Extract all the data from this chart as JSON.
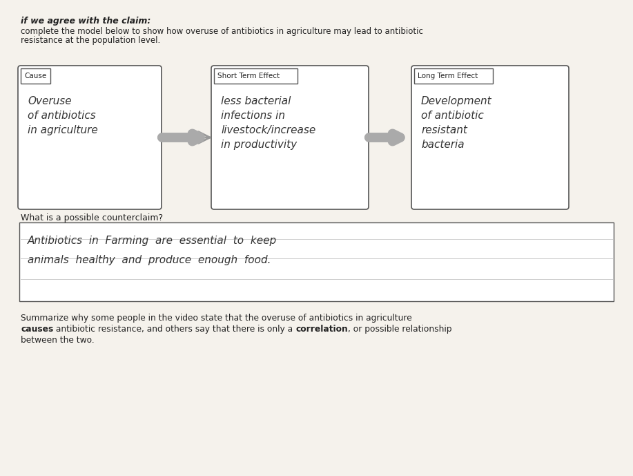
{
  "bg_color": "#d4c9b0",
  "paper_color": "#f5f2ec",
  "title_line1": "if we agree with the claim:",
  "title_line2": "complete the model below to show how overuse of antibiotics in agriculture may lead to antibiotic",
  "title_line3": "resistance at the population level.",
  "box1_label": "Cause",
  "box1_text": "Overuse\nof antibiotics\nin agriculture",
  "box2_label": "Short Term Effect",
  "box2_text": "less bacterial\ninfections in\nlivestock/increase\nin productivity",
  "box3_label": "Long Term Effect",
  "box3_text": "Development\nof antibiotic\nresistant\nbacteria",
  "counterclaim_label": "What is a possible counterclaim?",
  "counterclaim_text": "Antibiotics  in  Farming  are  essential  to  keep\nanimals  healthy  and  produce  enough  food.",
  "summary_text": "Summarize why some people in the video state that the overuse of antibiotics in agriculture\n{causes} antibiotic resistance, and others say that there is only a {correlation}, or possible relationship\nbetween the two.",
  "box_edge_color": "#555555",
  "handwriting_color": "#333333"
}
